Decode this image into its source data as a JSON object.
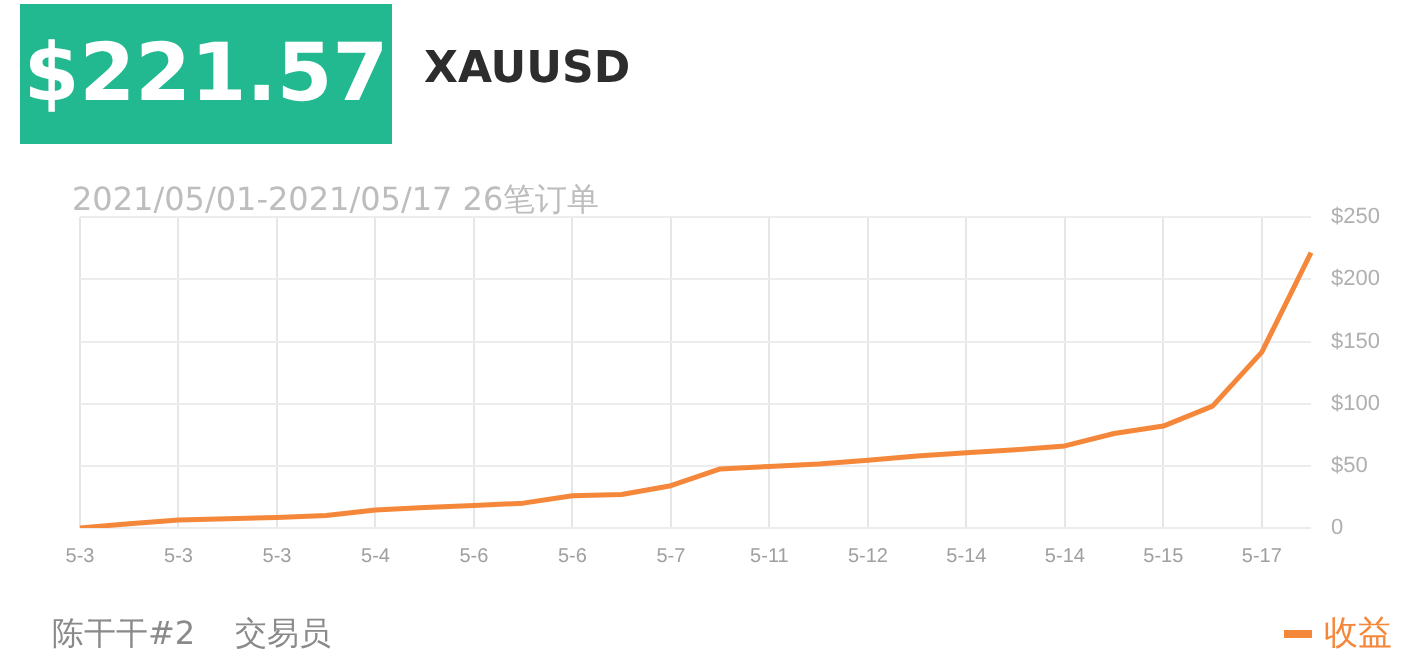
{
  "chart_data": {
    "type": "line",
    "title": "$221.57",
    "subtitle": "XAUUSD",
    "annotations": [
      "2021/05/01-2021/05/17 26笔订单",
      "陈干干#2",
      "交易员"
    ],
    "categories": [
      "5-3",
      null,
      "5-3",
      null,
      "5-3",
      null,
      "5-4",
      null,
      "5-6",
      null,
      "5-6",
      null,
      "5-7",
      null,
      "5-11",
      null,
      "5-12",
      null,
      "5-14",
      null,
      "5-14",
      null,
      "5-15",
      null,
      "5-17",
      null
    ],
    "series": [
      {
        "name": "收益",
        "color": "#f5873a",
        "values": [
          0,
          3.5,
          6.5,
          7.5,
          8.5,
          10,
          14.5,
          16.5,
          18,
          20,
          26,
          27,
          34,
          47.5,
          49.5,
          51.5,
          54.5,
          58,
          60.5,
          63,
          66,
          76,
          82,
          98,
          141.5,
          221.57
        ]
      }
    ],
    "ylim": [
      0,
      250
    ],
    "yticks": [
      0,
      {
        "value": 50,
        "label": "$50"
      },
      {
        "value": 100,
        "label": "$100"
      },
      {
        "value": 150,
        "label": "$150"
      },
      {
        "value": 200,
        "label": "$200"
      },
      {
        "value": 250,
        "label": "$250"
      }
    ],
    "grid": true,
    "legend": "bottom right",
    "marker": "none",
    "line_style": "solid"
  }
}
